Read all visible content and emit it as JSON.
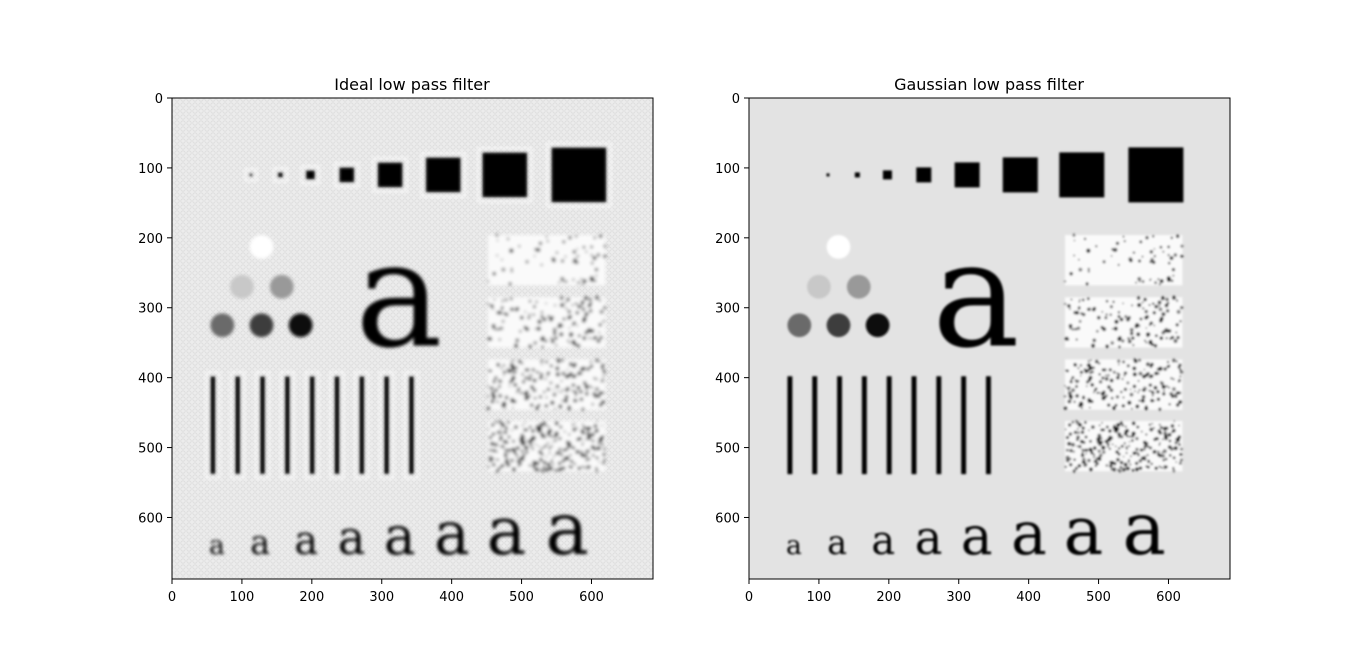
{
  "panels": [
    {
      "title": "Ideal low pass filter",
      "x_ticks": [
        "0",
        "100",
        "200",
        "300",
        "400",
        "500",
        "600"
      ],
      "y_ticks": [
        "0",
        "100",
        "200",
        "300",
        "400",
        "500",
        "600"
      ],
      "background": "#ececec",
      "ringing": true
    },
    {
      "title": "Gaussian low pass filter",
      "x_ticks": [
        "0",
        "100",
        "200",
        "300",
        "400",
        "500",
        "600"
      ],
      "y_ticks": [
        "0",
        "100",
        "200",
        "300",
        "400",
        "500",
        "600"
      ],
      "background": "#e3e3e3",
      "ringing": false
    }
  ],
  "image_content": {
    "glyph": "a",
    "axis_extent": [
      0,
      688
    ],
    "square_sizes": [
      3,
      5,
      9,
      15,
      25,
      35,
      45,
      55
    ],
    "circle_gray_levels": [
      "#ffffff",
      "#c8c8c8",
      "#999999",
      "#6a6a6a",
      "#3c3c3c",
      "#111111"
    ],
    "bar_count": 9,
    "noise_levels": [
      0.15,
      0.3,
      0.45,
      0.6
    ],
    "letter_sizes": [
      40,
      50,
      60,
      70,
      80,
      90,
      100,
      110
    ]
  }
}
